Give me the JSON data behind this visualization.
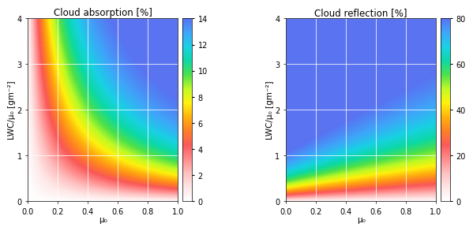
{
  "title_left": "Cloud absorption [%]",
  "title_right": "Cloud reflection [%]",
  "xlabel": "μ₀",
  "ylabel": "LWC/μ₀ [gm⁻²]",
  "xlim": [
    0.0,
    1.0
  ],
  "ylim": [
    0.0,
    4.0
  ],
  "xticks": [
    0.0,
    0.2,
    0.4,
    0.6,
    0.8,
    1.0
  ],
  "yticks": [
    0,
    1,
    2,
    3,
    4
  ],
  "absorption_vmin": 0,
  "absorption_vmax": 14,
  "absorption_cbar_ticks": [
    0,
    2,
    4,
    6,
    8,
    10,
    12,
    14
  ],
  "reflection_vmin": 0,
  "reflection_vmax": 80,
  "reflection_cbar_ticks": [
    0,
    20,
    40,
    60,
    80
  ],
  "bg_color": "#f0f0f0",
  "grid_color": "white",
  "title_fontsize": 8.5,
  "label_fontsize": 7.5,
  "tick_fontsize": 7
}
